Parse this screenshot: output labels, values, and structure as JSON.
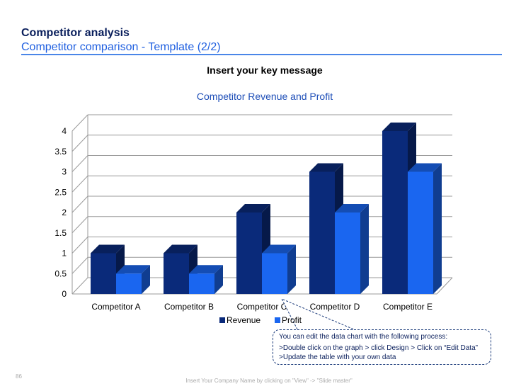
{
  "slide": {
    "title": "Competitor analysis",
    "subtitle": "Competitor comparison - Template (2/2)",
    "key_message": "Insert your key message",
    "page_number": "86",
    "footer": "Insert Your Company Name by clicking on \"View\" -> \"Slide master\""
  },
  "callout": {
    "line1": "You can edit the data chart with the following process:",
    "line2": ">Double click on the graph > click Design > Click on “Edit Data” >Update the table with your own data"
  },
  "colors": {
    "revenue": "#0a2a7a",
    "profit": "#1a66f0",
    "title_text": "#0a1f5c",
    "subtitle_text": "#1f5fe0",
    "chart_title_text": "#1f4fb8"
  },
  "chart_data": {
    "type": "bar",
    "title": "Competitor Revenue and Profit",
    "categories": [
      "Competitor A",
      "Competitor B",
      "Competitor C",
      "Competitor D",
      "Competitor E"
    ],
    "series": [
      {
        "name": "Revenue",
        "values": [
          1,
          1,
          2,
          3,
          4
        ]
      },
      {
        "name": "Profit",
        "values": [
          0.5,
          0.5,
          1,
          2,
          3
        ]
      }
    ],
    "yticks": [
      "0",
      "0.5",
      "1",
      "1.5",
      "2",
      "2.5",
      "3",
      "3.5",
      "4"
    ],
    "ylim": [
      0,
      4
    ],
    "grid": true,
    "legend": "bottom",
    "style": "3d-clustered-column"
  }
}
